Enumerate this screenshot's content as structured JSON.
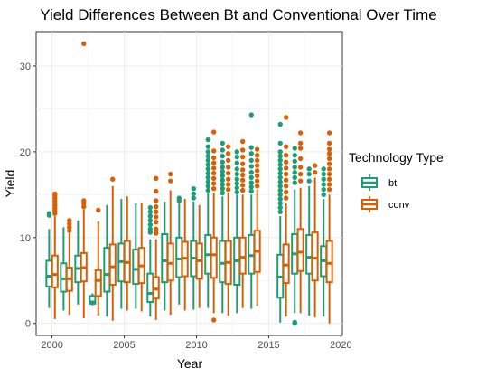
{
  "chart_data": {
    "type": "boxplot",
    "title": "Yield Differences Between Bt and Conventional Over Time",
    "xlabel": "Year",
    "ylabel": "Yield",
    "xlim": [
      1998.9,
      2020.1
    ],
    "ylim": [
      -1.4,
      34.0
    ],
    "x_ticks": [
      2000,
      2005,
      2010,
      2015,
      2020
    ],
    "y_ticks": [
      0,
      10,
      20,
      30
    ],
    "grid": true,
    "legend": {
      "title": "Technology Type",
      "position": "right",
      "entries": [
        {
          "key": "bt",
          "label": "bt",
          "color": "#1b9e77"
        },
        {
          "key": "conv",
          "label": "conv",
          "color": "#d95f02"
        }
      ]
    },
    "series": [
      {
        "name": "bt",
        "color": "#1b9e77",
        "boxes": [
          {
            "year": 2000,
            "whisker_low": 1.8,
            "q1": 4.3,
            "median": 5.5,
            "q3": 7.3,
            "whisker_high": 11.0,
            "outliers": [
              12.6,
              12.8
            ]
          },
          {
            "year": 2001,
            "whisker_low": 1.5,
            "q1": 3.7,
            "median": 5.2,
            "q3": 7.0,
            "whisker_high": 11.2,
            "outliers": []
          },
          {
            "year": 2002,
            "whisker_low": 2.2,
            "q1": 4.8,
            "median": 6.4,
            "q3": 7.9,
            "whisker_high": 12.0,
            "outliers": []
          },
          {
            "year": 2003,
            "whisker_low": 2.1,
            "q1": 2.3,
            "median": 2.5,
            "q3": 3.2,
            "whisker_high": 3.5,
            "outliers": []
          },
          {
            "year": 2004,
            "whisker_low": 0.8,
            "q1": 3.7,
            "median": 5.7,
            "q3": 8.8,
            "whisker_high": 13.8,
            "outliers": []
          },
          {
            "year": 2005,
            "whisker_low": 1.7,
            "q1": 4.9,
            "median": 7.2,
            "q3": 9.3,
            "whisker_high": 14.5,
            "outliers": []
          },
          {
            "year": 2006,
            "whisker_low": 1.7,
            "q1": 4.6,
            "median": 6.3,
            "q3": 8.6,
            "whisker_high": 14.0,
            "outliers": []
          },
          {
            "year": 2007,
            "whisker_low": 0.8,
            "q1": 2.5,
            "median": 3.5,
            "q3": 5.8,
            "whisker_high": 9.8,
            "outliers": [
              10.6,
              11.0,
              11.5,
              12.0,
              12.5,
              13.0,
              13.5
            ]
          },
          {
            "year": 2008,
            "whisker_low": 1.5,
            "q1": 4.8,
            "median": 7.3,
            "q3": 10.4,
            "whisker_high": 14.2,
            "outliers": []
          },
          {
            "year": 2009,
            "whisker_low": 2.2,
            "q1": 5.4,
            "median": 7.5,
            "q3": 10.0,
            "whisker_high": 14.0,
            "outliers": [
              14.3,
              14.6
            ]
          },
          {
            "year": 2010,
            "whisker_low": 1.6,
            "q1": 5.5,
            "median": 7.6,
            "q3": 9.6,
            "whisker_high": 14.2,
            "outliers": [
              14.6,
              15.1,
              15.7
            ]
          },
          {
            "year": 2011,
            "whisker_low": 1.8,
            "q1": 5.8,
            "median": 8.0,
            "q3": 10.3,
            "whisker_high": 15.2,
            "outliers": [
              15.5,
              16.0,
              16.5,
              17.0,
              17.5,
              18.0,
              18.5,
              19.0,
              19.5,
              20.0,
              20.6,
              21.4
            ]
          },
          {
            "year": 2012,
            "whisker_low": 1.2,
            "q1": 4.8,
            "median": 7.0,
            "q3": 9.6,
            "whisker_high": 14.8,
            "outliers": [
              15.2,
              15.7,
              16.2,
              16.7,
              17.2,
              17.7,
              18.2,
              18.8,
              19.5,
              20.2,
              21.0
            ]
          },
          {
            "year": 2013,
            "whisker_low": 1.2,
            "q1": 4.5,
            "median": 7.3,
            "q3": 10.0,
            "whisker_high": 15.0,
            "outliers": [
              15.3,
              15.8,
              16.3,
              16.8,
              17.4,
              18.0,
              18.7,
              19.4,
              20.0
            ]
          },
          {
            "year": 2014,
            "whisker_low": 1.7,
            "q1": 5.8,
            "median": 7.9,
            "q3": 10.3,
            "whisker_high": 15.0,
            "outliers": [
              15.4,
              15.9,
              16.4,
              17.0,
              17.6,
              18.3,
              19.0,
              19.8,
              20.5,
              24.3
            ]
          },
          {
            "year": 2016,
            "whisker_low": 0.1,
            "q1": 3.0,
            "median": 5.4,
            "q3": 8.0,
            "whisker_high": 12.5,
            "outliers": [
              13.0,
              13.5,
              14.0,
              14.5,
              15.0,
              15.5,
              16.0,
              16.5,
              17.0,
              17.5,
              18.0,
              18.5,
              19.0,
              19.5,
              20.0,
              21.0,
              23.2
            ]
          },
          {
            "year": 2017,
            "whisker_low": 1.2,
            "q1": 5.8,
            "median": 8.1,
            "q3": 10.4,
            "whisker_high": 15.6,
            "outliers": [
              0.0,
              0.15,
              16.4,
              17.0,
              17.6,
              18.2,
              18.9,
              19.6,
              20.4
            ]
          },
          {
            "year": 2018,
            "whisker_low": 0.9,
            "q1": 5.8,
            "median": 7.7,
            "q3": 10.3,
            "whisker_high": 16.0,
            "outliers": [
              16.6,
              17.4,
              18.0
            ]
          },
          {
            "year": 2019,
            "whisker_low": 0.8,
            "q1": 5.5,
            "median": 7.3,
            "q3": 9.0,
            "whisker_high": 14.5,
            "outliers": [
              15.0,
              15.6,
              16.2,
              16.8,
              17.4,
              18.0
            ]
          }
        ]
      },
      {
        "name": "conv",
        "color": "#d95f02",
        "boxes": [
          {
            "year": 2000,
            "whisker_low": 0.5,
            "q1": 4.2,
            "median": 5.7,
            "q3": 7.9,
            "whisker_high": 12.5,
            "outliers": [
              12.8,
              13.1,
              13.4,
              13.7,
              14.0,
              14.3,
              14.6,
              14.9,
              15.1
            ]
          },
          {
            "year": 2001,
            "whisker_low": 1.0,
            "q1": 3.8,
            "median": 5.2,
            "q3": 6.5,
            "whisker_high": 10.5,
            "outliers": [
              10.8,
              11.2,
              11.6,
              12.0
            ]
          },
          {
            "year": 2002,
            "whisker_low": 0.6,
            "q1": 4.9,
            "median": 6.5,
            "q3": 8.2,
            "whisker_high": 13.3,
            "outliers": [
              13.6,
              14.0,
              14.3,
              32.6
            ]
          },
          {
            "year": 2003,
            "whisker_low": 0.9,
            "q1": 3.2,
            "median": 5.0,
            "q3": 6.2,
            "whisker_high": 11.9,
            "outliers": [
              13.2
            ]
          },
          {
            "year": 2004,
            "whisker_low": 0.3,
            "q1": 4.5,
            "median": 6.6,
            "q3": 9.2,
            "whisker_high": 16.0,
            "outliers": [
              16.8
            ]
          },
          {
            "year": 2005,
            "whisker_low": 1.5,
            "q1": 4.8,
            "median": 7.1,
            "q3": 9.6,
            "whisker_high": 14.8,
            "outliers": []
          },
          {
            "year": 2006,
            "whisker_low": 1.4,
            "q1": 4.7,
            "median": 6.7,
            "q3": 8.8,
            "whisker_high": 14.1,
            "outliers": []
          },
          {
            "year": 2007,
            "whisker_low": 0.4,
            "q1": 2.9,
            "median": 4.0,
            "q3": 5.4,
            "whisker_high": 9.8,
            "outliers": [
              10.5,
              11.0,
              11.8,
              12.4,
              13.0,
              13.6,
              14.3,
              15.4,
              16.9
            ]
          },
          {
            "year": 2008,
            "whisker_low": 1.0,
            "q1": 5.0,
            "median": 7.0,
            "q3": 9.3,
            "whisker_high": 15.5,
            "outliers": [
              16.6,
              17.4
            ]
          },
          {
            "year": 2009,
            "whisker_low": 1.5,
            "q1": 5.5,
            "median": 7.6,
            "q3": 9.5,
            "whisker_high": 14.5,
            "outliers": []
          },
          {
            "year": 2010,
            "whisker_low": 1.8,
            "q1": 5.2,
            "median": 7.3,
            "q3": 9.3,
            "whisker_high": 13.8,
            "outliers": []
          },
          {
            "year": 2011,
            "whisker_low": 1.2,
            "q1": 5.3,
            "median": 8.0,
            "q3": 10.0,
            "whisker_high": 15.2,
            "outliers": [
              0.4,
              15.7,
              16.3,
              16.9,
              17.5,
              18.1,
              18.7,
              19.3,
              20.1,
              22.3
            ]
          },
          {
            "year": 2012,
            "whisker_low": 0.9,
            "q1": 4.6,
            "median": 7.1,
            "q3": 9.6,
            "whisker_high": 15.2,
            "outliers": [
              15.6,
              16.2,
              16.8,
              17.5,
              18.2,
              19.0,
              19.8,
              20.6
            ]
          },
          {
            "year": 2013,
            "whisker_low": 1.8,
            "q1": 5.8,
            "median": 7.7,
            "q3": 10.0,
            "whisker_high": 15.0,
            "outliers": [
              15.5,
              16.1,
              16.7,
              17.3,
              17.9,
              18.6,
              19.4,
              20.2,
              21.2
            ]
          },
          {
            "year": 2014,
            "whisker_low": 2.0,
            "q1": 6.0,
            "median": 8.4,
            "q3": 10.8,
            "whisker_high": 15.6,
            "outliers": [
              16.0,
              16.6,
              17.2,
              17.8,
              18.4,
              19.0,
              19.6,
              20.3
            ]
          },
          {
            "year": 2016,
            "whisker_low": 0.8,
            "q1": 4.7,
            "median": 6.8,
            "q3": 9.2,
            "whisker_high": 14.0,
            "outliers": [
              14.6,
              15.3,
              16.0,
              16.7,
              17.4,
              18.1,
              18.8,
              19.6,
              20.6,
              24.0
            ]
          },
          {
            "year": 2017,
            "whisker_low": 1.2,
            "q1": 6.1,
            "median": 8.3,
            "q3": 11.0,
            "whisker_high": 15.8,
            "outliers": [
              16.6,
              17.4,
              18.2,
              19.2,
              20.4,
              21.0,
              22.2
            ]
          },
          {
            "year": 2018,
            "whisker_low": 0.7,
            "q1": 5.0,
            "median": 7.6,
            "q3": 10.6,
            "whisker_high": 17.0,
            "outliers": [
              17.6,
              18.4
            ]
          },
          {
            "year": 2019,
            "whisker_low": 0.0,
            "q1": 4.8,
            "median": 7.0,
            "q3": 9.6,
            "whisker_high": 15.0,
            "outliers": [
              15.6,
              16.2,
              16.8,
              17.4,
              18.0,
              18.6,
              19.2,
              19.8,
              20.3,
              21.0,
              22.2
            ]
          }
        ]
      }
    ]
  }
}
